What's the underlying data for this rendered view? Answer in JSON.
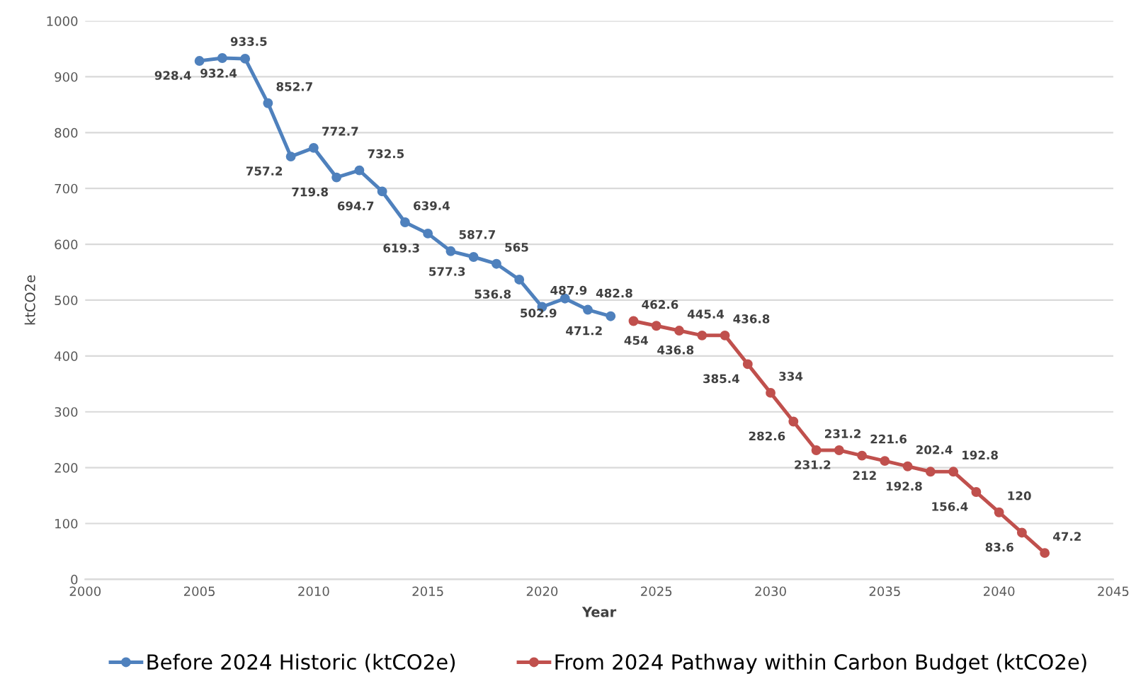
{
  "chart_data": {
    "type": "line",
    "xlabel": "Year",
    "ylabel": "ktCO2e",
    "xlim": [
      2000,
      2045
    ],
    "xticks": [
      2000,
      2005,
      2010,
      2015,
      2020,
      2025,
      2030,
      2035,
      2040,
      2045
    ],
    "ylim": [
      0,
      1000
    ],
    "yticks": [
      0,
      100,
      200,
      300,
      400,
      500,
      600,
      700,
      800,
      900,
      1000
    ],
    "grid": "y",
    "legend": "bottom",
    "marker": "circle",
    "line_style": "solid",
    "data_labels": true,
    "series": [
      {
        "name": "Before 2024 Historic (ktCO2e)",
        "color": "#4f81bd",
        "x": [
          2005,
          2006,
          2007,
          2008,
          2009,
          2010,
          2011,
          2012,
          2013,
          2014,
          2015,
          2016,
          2017,
          2018,
          2019,
          2020,
          2021,
          2022,
          2023
        ],
        "values": [
          928.4,
          933.5,
          932.4,
          852.7,
          757.2,
          772.7,
          719.8,
          732.5,
          694.7,
          639.4,
          619.3,
          587.7,
          577.3,
          565,
          536.8,
          487.9,
          502.9,
          482.8,
          471.2
        ]
      },
      {
        "name": "From 2024 Pathway within Carbon Budget (ktCO2e)",
        "color": "#c0504d",
        "x": [
          2024,
          2025,
          2026,
          2027,
          2028,
          2029,
          2030,
          2031,
          2032,
          2033,
          2034,
          2035,
          2036,
          2037,
          2038,
          2039,
          2040,
          2041,
          2042
        ],
        "values": [
          462.6,
          454,
          445.4,
          436.8,
          436.8,
          385.4,
          334,
          282.6,
          231.2,
          231.2,
          221.6,
          212,
          202.4,
          192.8,
          192.8,
          156.4,
          120,
          83.6,
          47.2
        ]
      }
    ]
  }
}
